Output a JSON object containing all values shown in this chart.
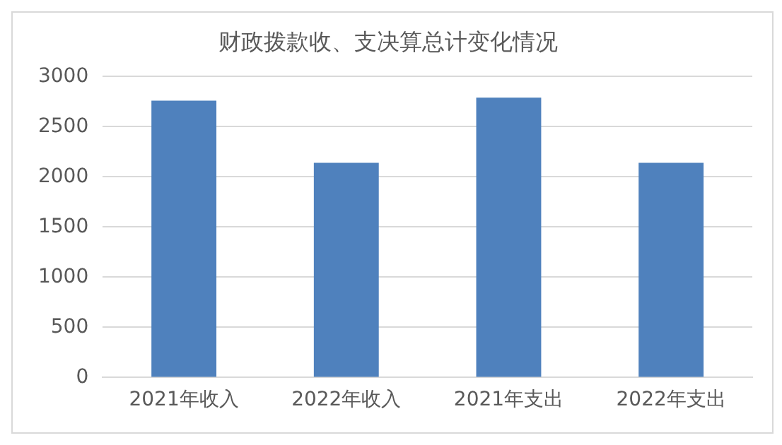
{
  "chart_data": {
    "type": "bar",
    "title": "财政拨款收、支决算总计变化情况",
    "categories": [
      "2021年收入",
      "2022年收入",
      "2021年支出",
      "2022年支出"
    ],
    "values": [
      2760,
      2140,
      2790,
      2140
    ],
    "color": "#4f81bd",
    "ylim": [
      0,
      3000
    ],
    "yticks": [
      0,
      500,
      1000,
      1500,
      2000,
      2500,
      3000
    ],
    "grid": "y",
    "legend": false
  }
}
